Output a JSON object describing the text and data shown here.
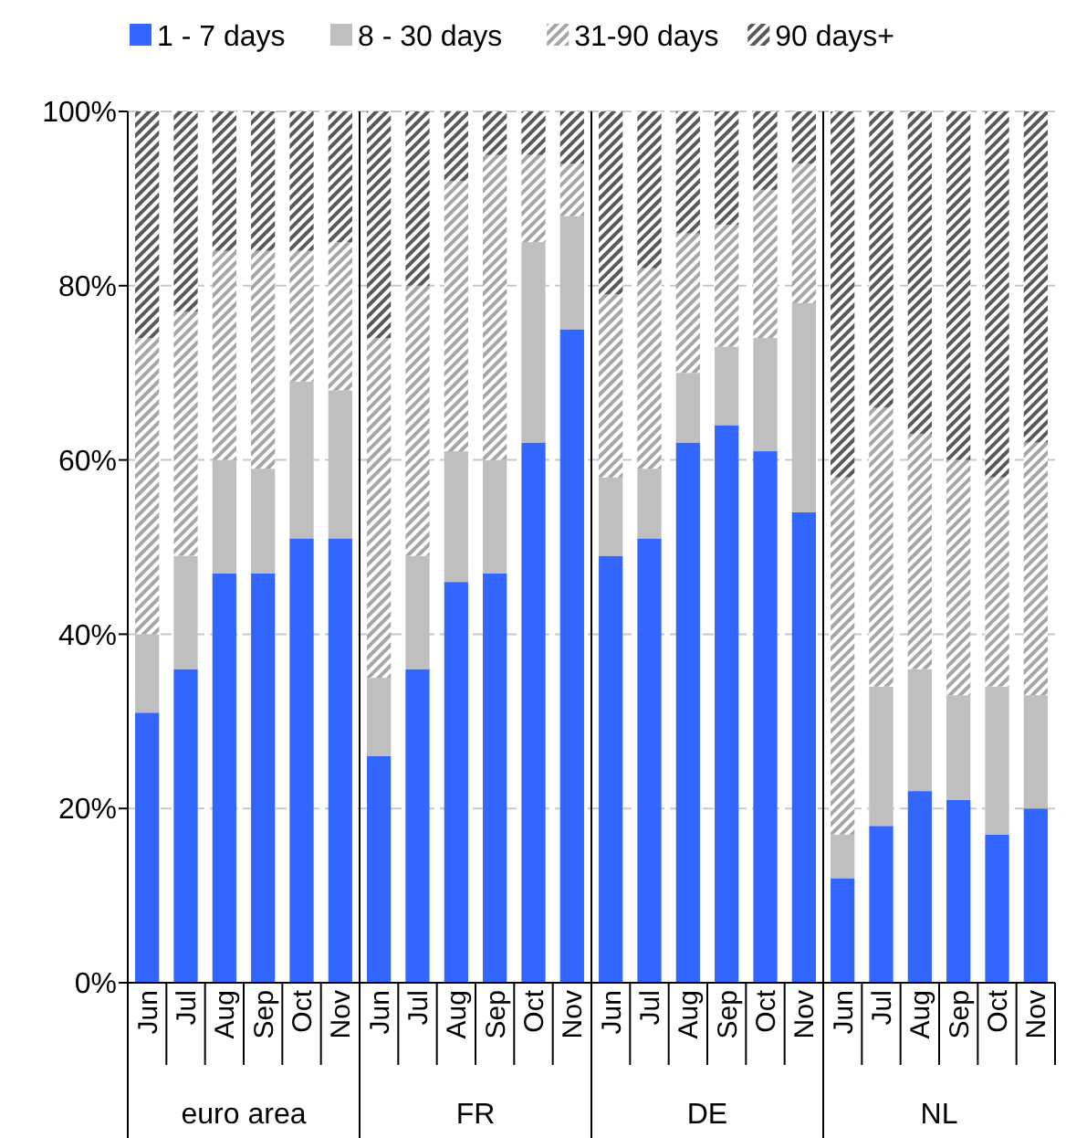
{
  "chart_data": {
    "type": "bar",
    "stacked": true,
    "categories": [
      "Jun",
      "Jul",
      "Aug",
      "Sep",
      "Oct",
      "Nov",
      "Jun",
      "Jul",
      "Aug",
      "Sep",
      "Oct",
      "Nov",
      "Jun",
      "Jul",
      "Aug",
      "Sep",
      "Oct",
      "Nov",
      "Jun",
      "Jul",
      "Aug",
      "Sep",
      "Oct",
      "Nov"
    ],
    "series": [
      {
        "name": "1 - 7 days",
        "color": "#3366ff",
        "values": [
          31,
          36,
          47,
          47,
          51,
          51,
          26,
          36,
          46,
          47,
          62,
          75,
          49,
          51,
          62,
          64,
          61,
          54,
          12,
          18,
          22,
          21,
          17,
          20
        ]
      },
      {
        "name": "8 - 30 days",
        "color": "#bfbfbf",
        "values": [
          9,
          13,
          13,
          12,
          18,
          17,
          9,
          13,
          15,
          13,
          23,
          13,
          9,
          8,
          8,
          9,
          13,
          24,
          5,
          16,
          14,
          12,
          17,
          13
        ]
      },
      {
        "name": "31-90 days",
        "color": "#a6a6a6",
        "values": [
          34,
          28,
          24,
          25,
          15,
          17,
          39,
          31,
          31,
          35,
          10,
          6,
          21,
          23,
          16,
          14,
          17,
          16,
          41,
          32,
          27,
          27,
          24,
          29
        ]
      },
      {
        "name": "90 days+",
        "color": "#595959",
        "values": [
          26,
          23,
          16,
          16,
          16,
          15,
          26,
          20,
          8,
          5,
          5,
          6,
          21,
          18,
          14,
          13,
          9,
          6,
          42,
          34,
          37,
          40,
          42,
          38
        ]
      }
    ],
    "ylim": [
      0,
      100
    ],
    "yticks": [
      {
        "value": 0,
        "label": "0%"
      },
      {
        "value": 20,
        "label": "20%"
      },
      {
        "value": 40,
        "label": "40%"
      },
      {
        "value": 60,
        "label": "60%"
      },
      {
        "value": 80,
        "label": "80%"
      },
      {
        "value": 100,
        "label": "100%"
      }
    ],
    "annotations": [
      "euro area",
      "FR",
      "DE",
      "NL"
    ],
    "grid": true,
    "legend": "top"
  }
}
